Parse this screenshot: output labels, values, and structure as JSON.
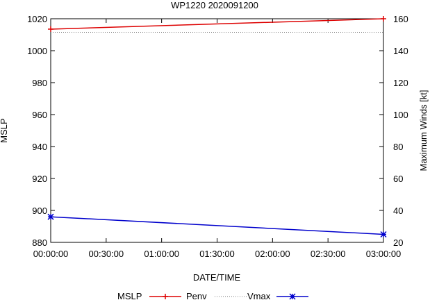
{
  "chart_data": {
    "type": "line",
    "title": "WP1220 2020091200",
    "xlabel": "DATE/TIME",
    "ylabel": "MSLP",
    "y2label": "Maximum Winds [kt]",
    "x_ticks": [
      "00:00:00",
      "00:30:00",
      "01:00:00",
      "01:30:00",
      "02:00:00",
      "02:30:00",
      "03:00:00"
    ],
    "x_hours": [
      0,
      3
    ],
    "ylim": [
      880,
      1020
    ],
    "y_ticks": [
      880,
      900,
      920,
      940,
      960,
      980,
      1000,
      1020
    ],
    "y2lim": [
      20,
      160
    ],
    "y2_ticks": [
      20,
      40,
      60,
      80,
      100,
      120,
      140,
      160
    ],
    "grid": false,
    "legend_position": "bottom",
    "series": [
      {
        "name": "MSLP",
        "axis": "left",
        "color": "#dd0000",
        "style": "solid",
        "marker": "plus",
        "values": [
          1013.5,
          1020
        ]
      },
      {
        "name": "Penv",
        "axis": "left",
        "color": "#777777",
        "style": "dotted",
        "marker": "none",
        "values": [
          1011.5,
          1011.5
        ]
      },
      {
        "name": "Vmax",
        "axis": "right",
        "color": "#0000cc",
        "style": "solid",
        "marker": "asterisk",
        "values": [
          36,
          25
        ]
      }
    ]
  }
}
